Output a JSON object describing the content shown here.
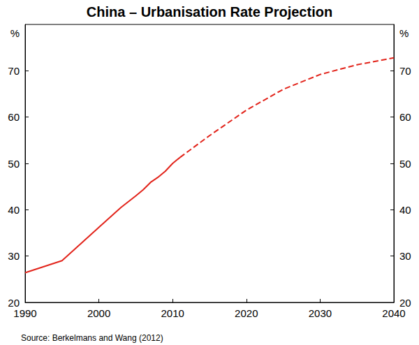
{
  "chart_data": {
    "type": "line",
    "title": "China – Urbanisation Rate Projection",
    "source": "Source: Berkelmans and Wang (2012)",
    "ylabel": "%",
    "y2label": "%",
    "x": [
      1990,
      1995,
      2000,
      2003,
      2005,
      2006,
      2007,
      2008,
      2009,
      2010,
      2011,
      2015,
      2020,
      2025,
      2030,
      2035,
      2040
    ],
    "series": [
      {
        "color": "#e2231a",
        "line_style": "solid",
        "values": [
          26.4,
          29.0,
          36.2,
          40.5,
          43.0,
          44.3,
          45.9,
          47.0,
          48.3,
          50.0,
          51.3,
          null,
          null,
          null,
          null,
          null,
          null
        ]
      },
      {
        "color": "#e2231a",
        "line_style": "dashed",
        "values": [
          null,
          null,
          null,
          null,
          null,
          null,
          null,
          null,
          null,
          null,
          51.3,
          56.0,
          61.5,
          66.0,
          69.2,
          71.3,
          72.8
        ]
      }
    ],
    "xlim": [
      1990,
      2040
    ],
    "xticks": [
      1990,
      2000,
      2010,
      2020,
      2030,
      2040
    ],
    "ylim": [
      20,
      80
    ],
    "yticks": [
      20,
      30,
      40,
      50,
      60,
      70
    ],
    "y2lim": [
      20,
      80
    ],
    "y2ticks": [
      20,
      30,
      40,
      50,
      60,
      70
    ],
    "grid": false
  }
}
